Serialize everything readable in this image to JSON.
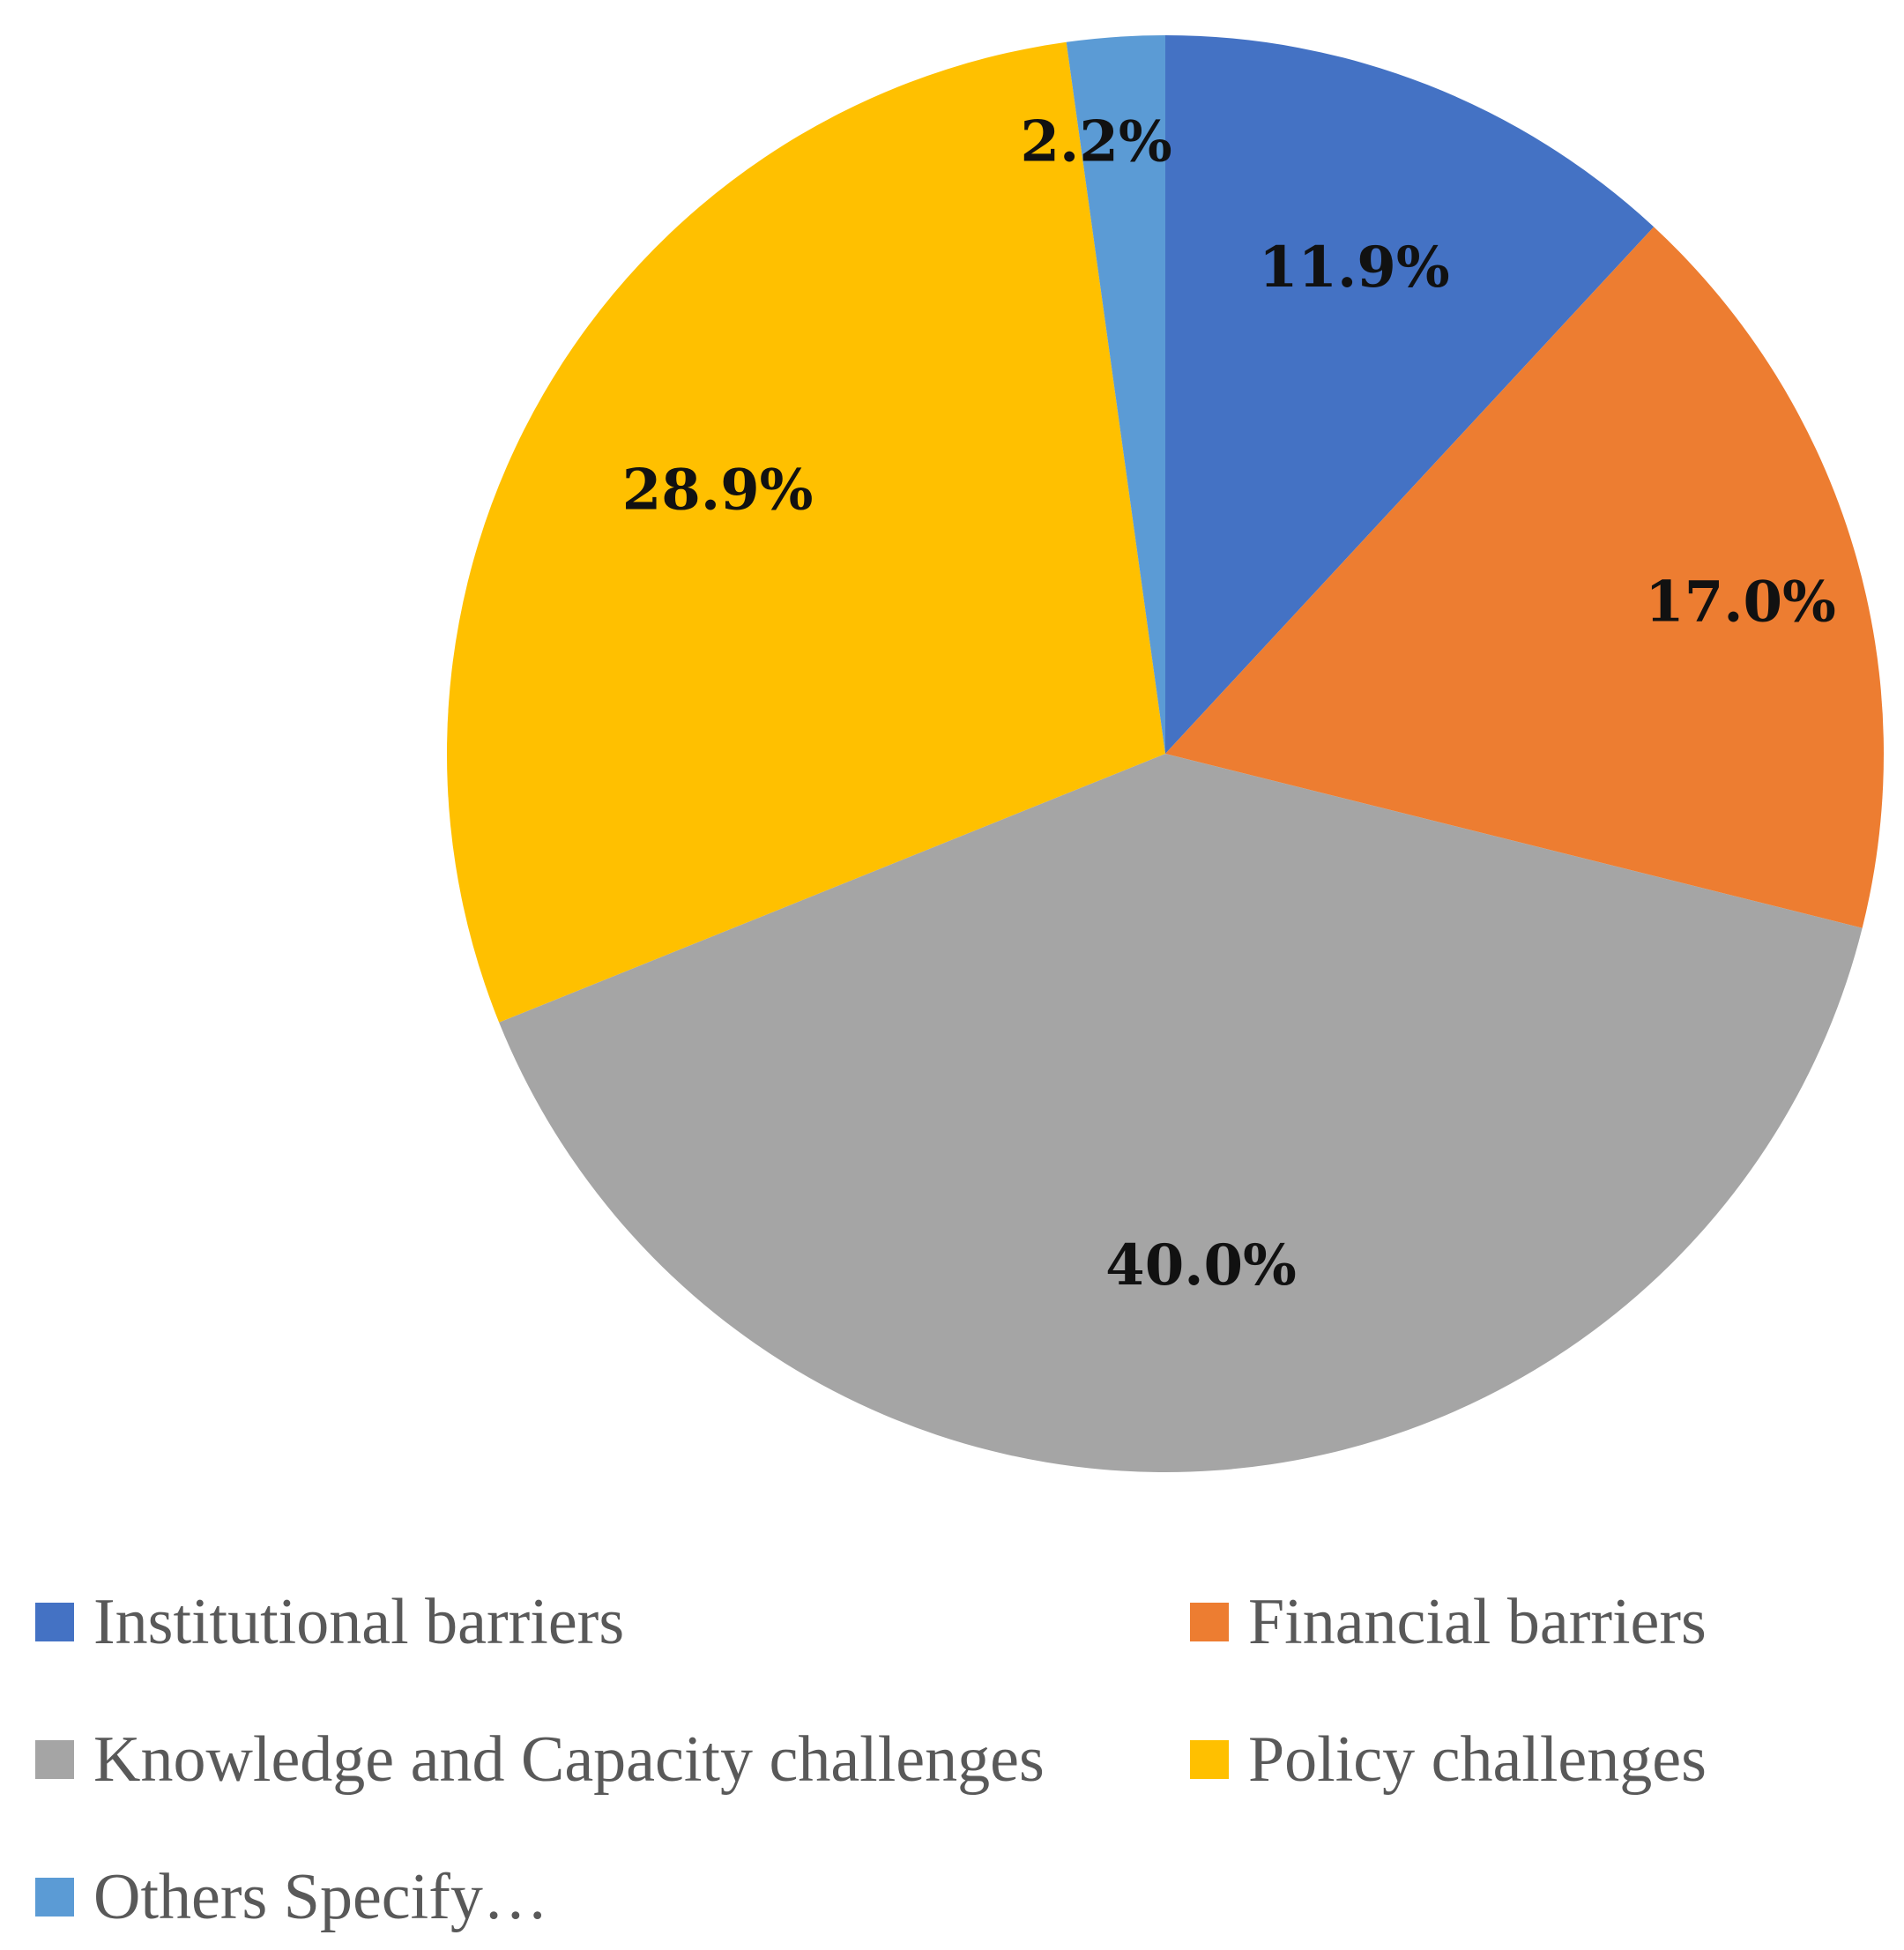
{
  "chart_data": {
    "type": "pie",
    "categories": [
      "Institutional barriers",
      "Financial barriers",
      "Knowledge and Capacity challenges",
      "Policy challenges",
      "Others Specify…"
    ],
    "values": [
      11.9,
      17.0,
      40.0,
      28.9,
      2.2
    ],
    "labels": [
      "11.9%",
      "17.0%",
      "40.0%",
      "28.9%",
      "2.2%"
    ],
    "colors": [
      "#4472C4",
      "#ED7D31",
      "#A5A5A5",
      "#FFC000",
      "#5B9BD5"
    ],
    "start_angle_deg": 0,
    "direction": "clockwise",
    "legend_position": "bottom"
  }
}
